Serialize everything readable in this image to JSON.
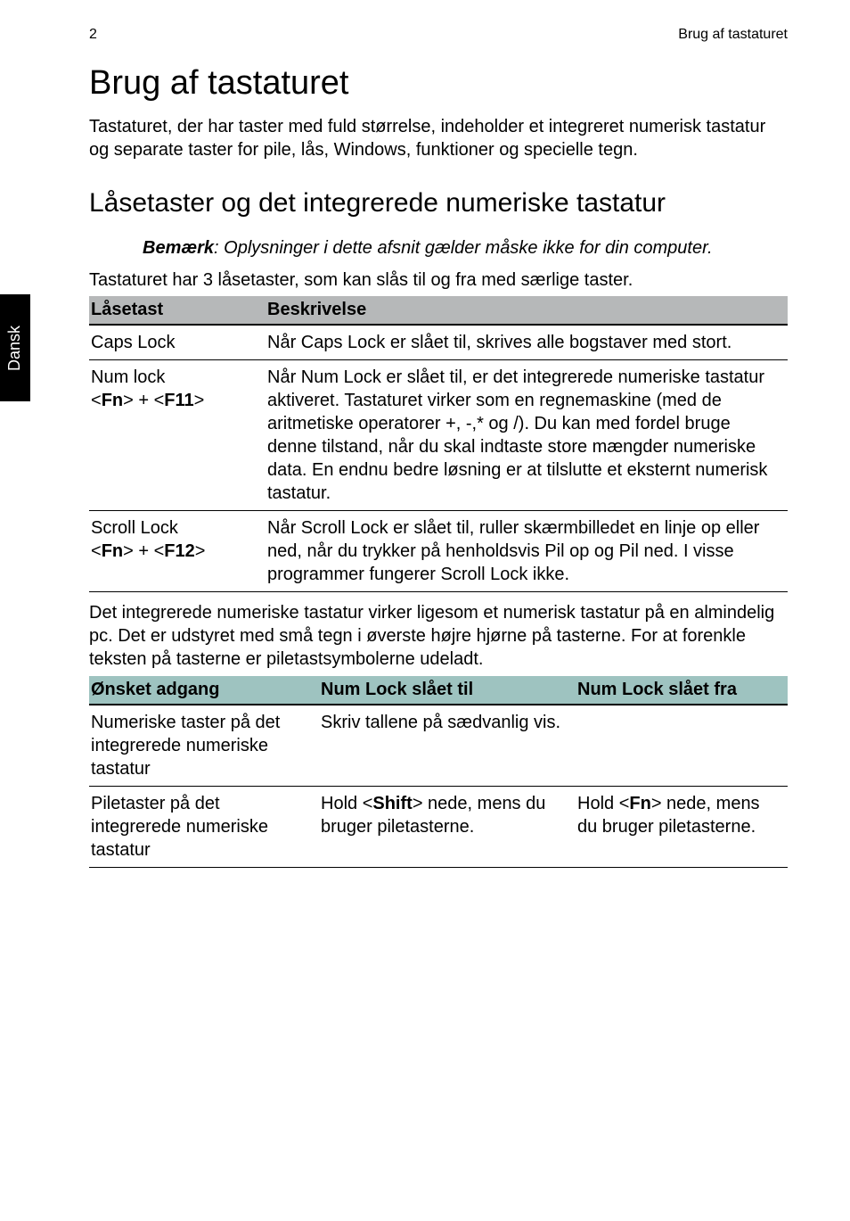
{
  "header": {
    "page_number": "2",
    "running_head": "Brug af tastaturet"
  },
  "side_tab": "Dansk",
  "title": "Brug af tastaturet",
  "intro": "Tastaturet, der har taster med fuld størrelse, indeholder et integreret numerisk tastatur og separate taster for pile, lås, Windows, funktioner og specielle tegn.",
  "section_title": "Låsetaster og det integrerede numeriske tastatur",
  "note": {
    "label": "Bemærk",
    "text": ": Oplysninger i dette afsnit gælder måske ikke for din computer."
  },
  "lead1": "Tastaturet har 3 låsetaster, som kan slås til og fra med særlige taster.",
  "table1": {
    "head_bg": "#b6b8b9",
    "cols": [
      "Låsetast",
      "Beskrivelse"
    ],
    "rows": [
      {
        "key_plain": "Caps Lock",
        "key_combo_pre": "",
        "key_combo_a": "",
        "key_combo_mid": "",
        "key_combo_b": "",
        "key_combo_post": "",
        "desc": "Når Caps Lock er slået til, skrives alle bogstaver med stort."
      },
      {
        "key_plain": "Num lock",
        "key_combo_pre": "<",
        "key_combo_a": "Fn",
        "key_combo_mid": "> + <",
        "key_combo_b": "F11",
        "key_combo_post": ">",
        "desc": "Når Num Lock er slået til, er det integrerede numeriske tastatur aktiveret. Tastaturet virker som en regnemaskine (med de aritmetiske operatorer +, -,* og /). Du kan med fordel bruge denne tilstand, når du skal indtaste store mængder numeriske data. En endnu bedre løsning er at tilslutte et eksternt numerisk tastatur."
      },
      {
        "key_plain": "Scroll Lock",
        "key_combo_pre": "<",
        "key_combo_a": "Fn",
        "key_combo_mid": "> + <",
        "key_combo_b": "F12",
        "key_combo_post": ">",
        "desc": "Når Scroll Lock er slået til, ruller skærmbilledet en linje op eller ned, når du trykker på henholdsvis Pil op og Pil ned. I visse programmer fungerer Scroll Lock ikke."
      }
    ]
  },
  "between": "Det integrerede numeriske tastatur virker ligesom et numerisk tastatur på en almindelig pc. Det er udstyret med små tegn i øverste højre hjørne på tasterne. For at forenkle teksten på tasterne er piletastsymbolerne udeladt.",
  "table2": {
    "head_bg": "#9ec3c0",
    "cols": [
      "Ønsket adgang",
      "Num Lock slået til",
      "Num Lock slået fra"
    ],
    "rows": [
      {
        "c1": "Numeriske taster på det integrerede numeriske tastatur",
        "c2_pre": "Skriv tallene på sædvanlig vis.",
        "c2_key": "",
        "c2_post": "",
        "c3_pre": "",
        "c3_key": "",
        "c3_post": ""
      },
      {
        "c1": "Piletaster på det integrerede numeriske tastatur",
        "c2_pre": "Hold <",
        "c2_key": "Shift",
        "c2_post": "> nede, mens du bruger piletasterne.",
        "c3_pre": "Hold <",
        "c3_key": "Fn",
        "c3_post": "> nede, mens du bruger piletasterne."
      }
    ]
  }
}
